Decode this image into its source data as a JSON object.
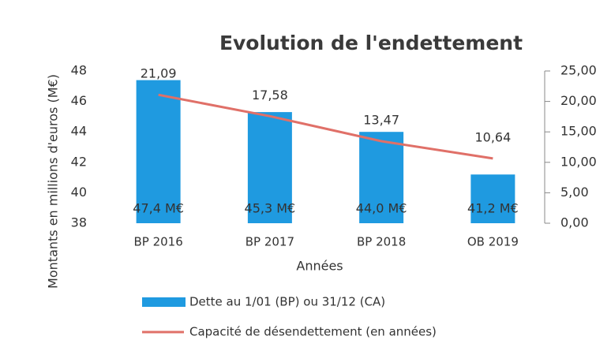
{
  "chart_data": {
    "type": "combo",
    "title": "Evolution de l'endettement",
    "y_label": "Montants en millions d'euros (M€)",
    "x_label": "Années",
    "categories": [
      "BP 2016",
      "BP 2017",
      "BP 2018",
      "OB 2019"
    ],
    "series": [
      {
        "name": "Dette au 1/01 (BP) ou 31/12 (CA)",
        "type": "bar",
        "color": "#1f9ae0",
        "values": [
          47.4,
          45.3,
          44.0,
          41.2
        ],
        "value_labels": [
          "47,4 M€",
          "45,3 M€",
          "44,0 M€",
          "41,2 M€"
        ]
      },
      {
        "name": "Capacité de désendettement (en années)",
        "type": "line",
        "axis": "y2",
        "color": "#e07068",
        "values": [
          21.09,
          17.58,
          13.47,
          10.64
        ],
        "value_labels": [
          "21,09",
          "17,58",
          "13,47",
          "10,64"
        ]
      }
    ],
    "ylim": [
      38,
      48
    ],
    "yticks": [
      38,
      40,
      42,
      44,
      46,
      48
    ],
    "y2lim": [
      0,
      25
    ],
    "y2ticks": [
      {
        "value": 0,
        "label": "0,00"
      },
      {
        "value": 5,
        "label": "5,00"
      },
      {
        "value": 10,
        "label": "10,00"
      },
      {
        "value": 15,
        "label": "15,00"
      },
      {
        "value": 20,
        "label": "20,00"
      },
      {
        "value": 25,
        "label": "25,00"
      }
    ],
    "legend": "bottom"
  }
}
